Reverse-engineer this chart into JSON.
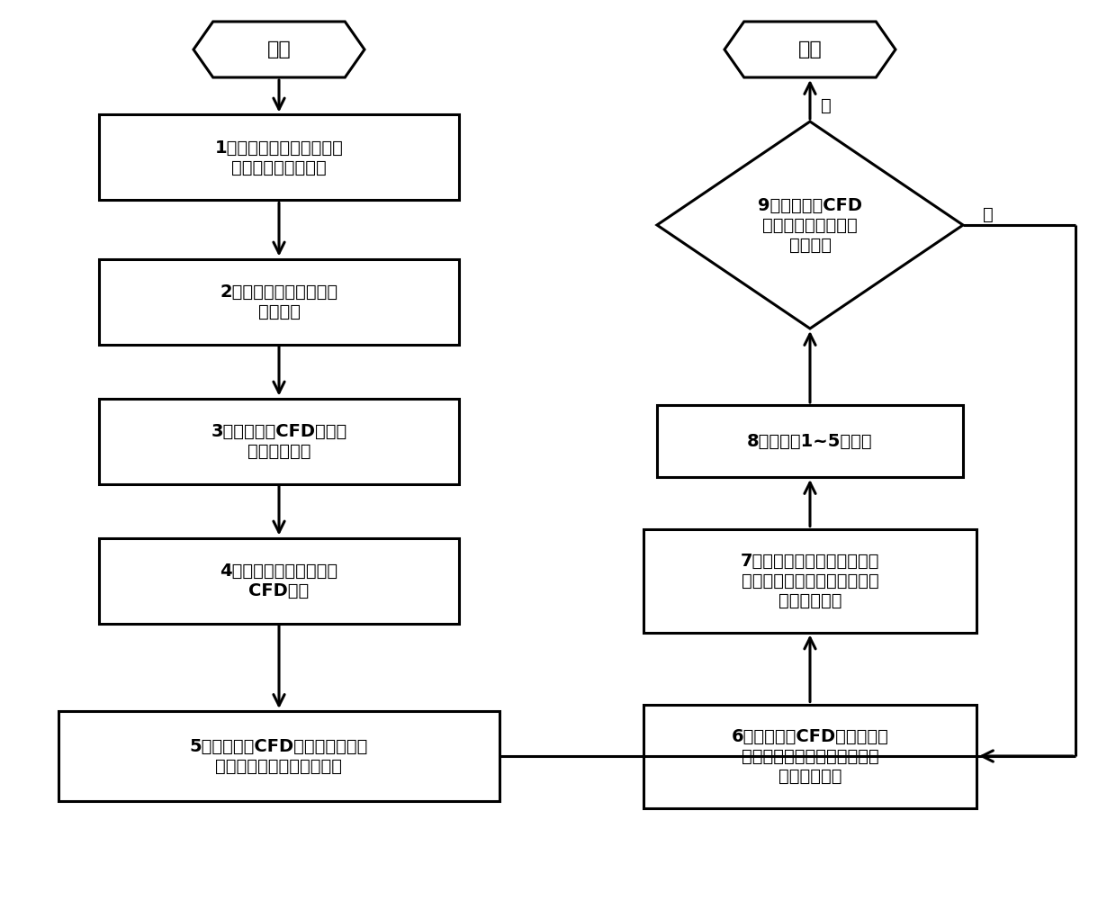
{
  "bg_color": "#ffffff",
  "line_color": "#000000",
  "line_width": 2.2,
  "font_size": 14,
  "start_text": "开始",
  "end_text": "结束",
  "box1_text": "1）通过子通道分析程序开\n展堆芯热工水力计算",
  "box2_text": "2）确定堆芯关键区域及\n区域范围",
  "box3_text": "3）确定堆芯CFD分析区\n域的边界条件",
  "box4_text": "4）开展堆芯关键区域的\nCFD计算",
  "box5_text": "5）整理堆芯CFD计算结果，分析\n堆芯关键区域热工水力状态",
  "diamond9_text": "9）相邻两次CFD\n计算中重要热工参数\n是否收敛",
  "box8_text": "8）重复第1~5步工作",
  "box7_text": "7）更新子通道程序在堆芯关\n键区域的热工水力计算模型与\n守恒方程源项",
  "box6_text": "6）整理堆芯CFD计算结果，\n优化子通道程序的计算模型与\n守恒方程源项",
  "yes_label": "是",
  "no_label": "否"
}
